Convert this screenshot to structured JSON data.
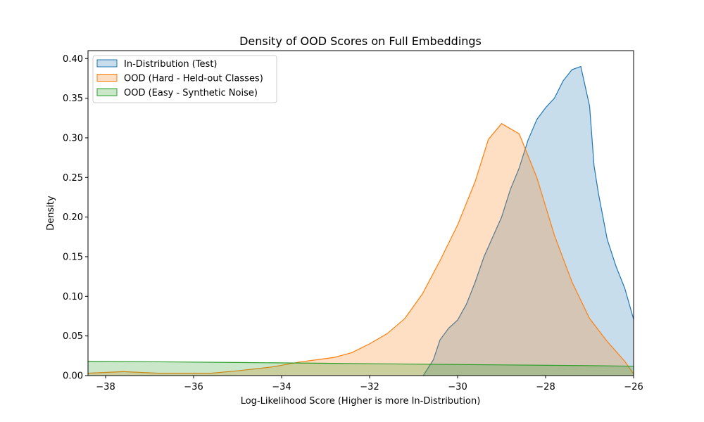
{
  "chart_data": {
    "type": "area",
    "title": "Density of OOD Scores on Full Embeddings",
    "xlabel": "Log-Likelihood Score (Higher is more In-Distribution)",
    "ylabel": "Density",
    "xlim": [
      -38.4,
      -26
    ],
    "ylim": [
      0,
      0.41
    ],
    "xticks": [
      -38,
      -36,
      -34,
      -32,
      -30,
      -28,
      -26
    ],
    "xtick_labels": [
      "−38",
      "−36",
      "−34",
      "−32",
      "−30",
      "−28",
      "−26"
    ],
    "yticks": [
      0.0,
      0.05,
      0.1,
      0.15,
      0.2,
      0.25,
      0.3,
      0.35,
      0.4
    ],
    "ytick_labels": [
      "0.00",
      "0.05",
      "0.10",
      "0.15",
      "0.20",
      "0.25",
      "0.30",
      "0.35",
      "0.40"
    ],
    "grid": false,
    "legend_position": "top-left",
    "series": [
      {
        "name": "In-Distribution (Test)",
        "color": "#1f77b4",
        "x": [
          -30.78,
          -30.55,
          -30.4,
          -30.2,
          -30.0,
          -29.8,
          -29.6,
          -29.4,
          -29.2,
          -29.0,
          -28.8,
          -28.6,
          -28.4,
          -28.2,
          -28.0,
          -27.8,
          -27.6,
          -27.4,
          -27.2,
          -27.0,
          -26.9,
          -26.8,
          -26.6,
          -26.4,
          -26.2,
          -26.0
        ],
        "y": [
          0.0,
          0.02,
          0.045,
          0.06,
          0.07,
          0.09,
          0.118,
          0.15,
          0.175,
          0.2,
          0.235,
          0.262,
          0.297,
          0.323,
          0.338,
          0.35,
          0.372,
          0.386,
          0.39,
          0.34,
          0.265,
          0.23,
          0.172,
          0.138,
          0.11,
          0.071
        ]
      },
      {
        "name": "OOD (Hard - Held-out Classes)",
        "color": "#ff7f0e",
        "x": [
          -38.4,
          -37.6,
          -36.8,
          -35.6,
          -35.0,
          -34.2,
          -33.6,
          -33.2,
          -32.8,
          -32.4,
          -32.0,
          -31.6,
          -31.2,
          -30.8,
          -30.4,
          -30.0,
          -29.6,
          -29.3,
          -29.0,
          -28.6,
          -28.2,
          -27.8,
          -27.4,
          -27.0,
          -26.6,
          -26.2,
          -26.0
        ],
        "y": [
          0.003,
          0.005,
          0.003,
          0.003,
          0.006,
          0.011,
          0.017,
          0.02,
          0.023,
          0.029,
          0.04,
          0.053,
          0.072,
          0.103,
          0.145,
          0.19,
          0.245,
          0.298,
          0.318,
          0.305,
          0.25,
          0.177,
          0.118,
          0.072,
          0.043,
          0.018,
          0.002
        ]
      },
      {
        "name": "OOD (Easy - Synthetic Noise)",
        "color": "#2ca02c",
        "x": [
          -38.4,
          -37.0,
          -35.0,
          -33.0,
          -31.0,
          -29.0,
          -27.0,
          -26.0
        ],
        "y": [
          0.018,
          0.0175,
          0.0165,
          0.0155,
          0.0145,
          0.0135,
          0.0125,
          0.0118
        ]
      }
    ]
  }
}
